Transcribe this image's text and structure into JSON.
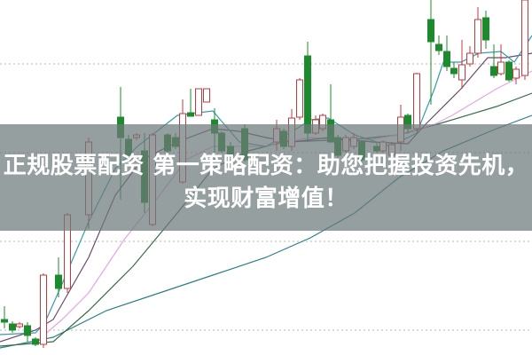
{
  "banner": {
    "title_line1": "正规股票配资 第一策略配资：助您把握投资先机，",
    "title_line2": "实现财富增值！"
  },
  "chart": {
    "type": "candlestick",
    "grid": "dotted horizontal",
    "colors": {
      "up": "#c0393f",
      "down": "#1e8a2e",
      "ma_short": "#3a9aa8",
      "ma_mid": "#6b4a6b",
      "ma_pink": "#e4a6e4",
      "ma_long": "#3b6b4b",
      "ma_longest": "#2a7f8a"
    }
  }
}
